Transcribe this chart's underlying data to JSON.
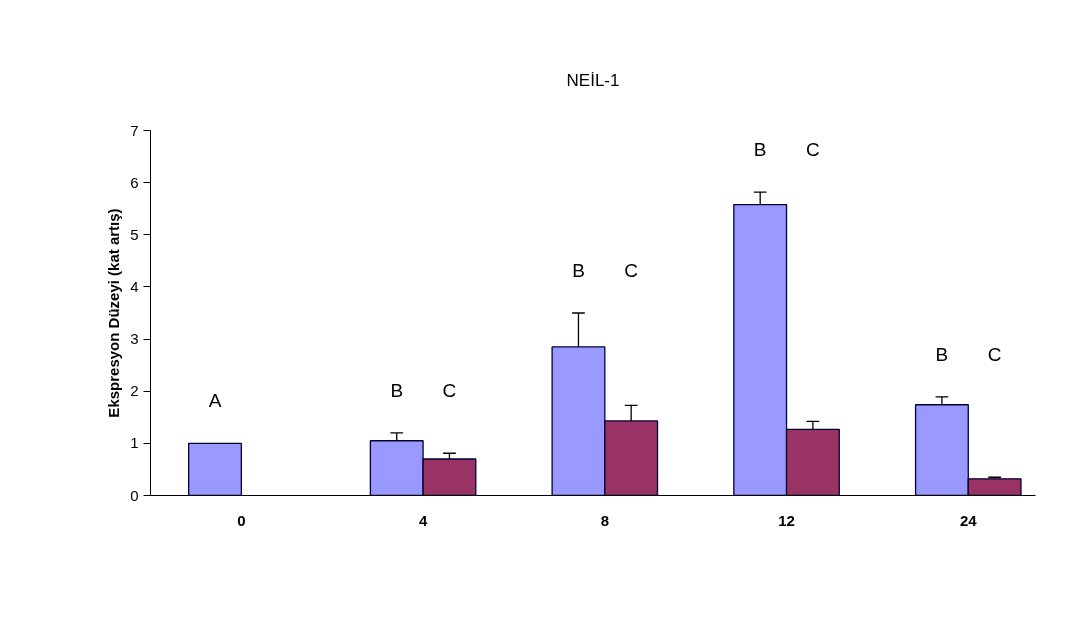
{
  "chart_data": {
    "type": "bar",
    "title": "NEİL-1",
    "ylabel": "Ekspresyon Düzeyi (kat artış)",
    "categories": [
      "0",
      "4",
      "8",
      "12",
      "24"
    ],
    "series": [
      {
        "color": "#9999ff",
        "values": [
          1.0,
          1.05,
          2.85,
          5.58,
          1.74
        ],
        "errors": [
          null,
          [
            1.05,
            1.2
          ],
          [
            2.85,
            3.5
          ],
          [
            5.58,
            5.82
          ],
          [
            1.74,
            1.89
          ]
        ]
      },
      {
        "color": "#993366",
        "values": [
          null,
          0.7,
          1.43,
          1.27,
          0.32
        ],
        "errors": [
          null,
          [
            0.7,
            0.81
          ],
          [
            1.43,
            1.73
          ],
          [
            1.27,
            1.42
          ],
          [
            0.32,
            0.35
          ]
        ]
      }
    ],
    "ylim": [
      0,
      7
    ],
    "yticks": [
      0,
      1,
      2,
      3,
      4,
      5,
      6,
      7
    ],
    "grid": false,
    "annotations": [
      "A",
      "B",
      "C",
      "B",
      "C",
      "B",
      "C",
      "B",
      "C"
    ]
  }
}
